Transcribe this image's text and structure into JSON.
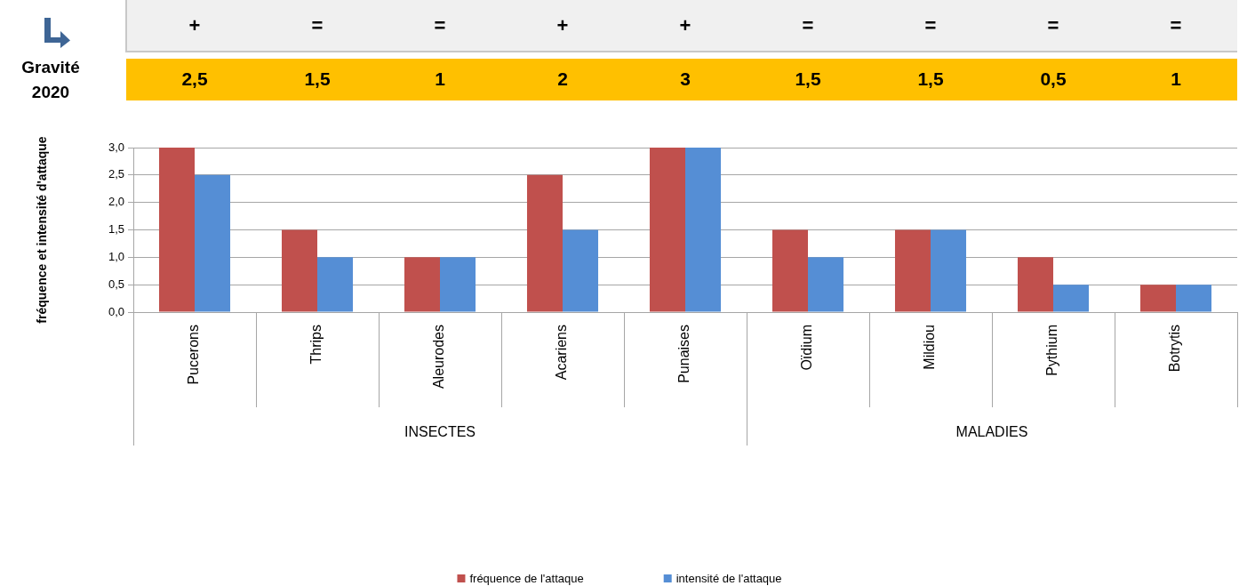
{
  "chart_data": {
    "type": "bar",
    "ylabel": "fréquence et intensité d'attaque",
    "categories": [
      "Pucerons",
      "Thrips",
      "Aleurodes",
      "Acariens",
      "Punaises",
      "Oïdium",
      "Mildiou",
      "Pythium",
      "Botrytis"
    ],
    "series": [
      {
        "name": "fréquence de l'attaque",
        "color": "#c0504d",
        "values": [
          3,
          1.5,
          1,
          2.5,
          3,
          1.5,
          1.5,
          1,
          0.5
        ]
      },
      {
        "name": "intensité de l'attaque",
        "color": "#558ed5",
        "values": [
          2.5,
          1,
          1,
          1.5,
          3,
          1,
          1.5,
          0.5,
          0.5
        ]
      }
    ],
    "ylim": [
      0,
      3
    ],
    "yticks": [
      {
        "value": 0,
        "label": "0,0"
      },
      {
        "value": 0.5,
        "label": "0,5"
      },
      {
        "value": 1,
        "label": "1,0"
      },
      {
        "value": 1.5,
        "label": "1,5"
      },
      {
        "value": 2,
        "label": "2,0"
      },
      {
        "value": 2.5,
        "label": "2,5"
      },
      {
        "value": 3,
        "label": "3,0"
      }
    ],
    "grid": "y",
    "legend": "bottom",
    "annotations": [
      "+",
      "=",
      "=",
      "+",
      "+",
      "=",
      "=",
      "=",
      "=",
      "Gravité 2020",
      "2,5",
      "1,5",
      "1",
      "2",
      "3",
      "1,5",
      "1,5",
      "0,5",
      "1",
      "INSECTES",
      "MALADIES"
    ]
  }
}
